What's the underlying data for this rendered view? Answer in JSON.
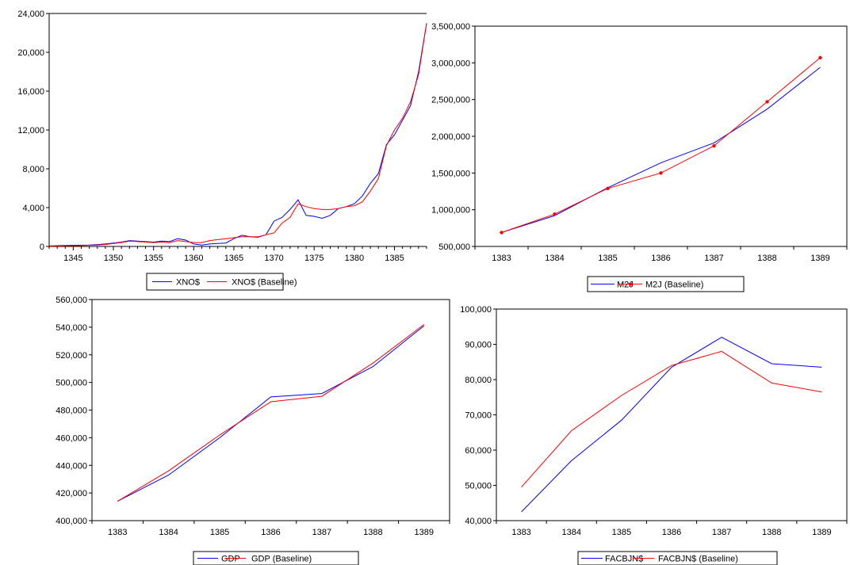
{
  "colors": {
    "actual": "#0000ff",
    "baseline": "#ff0000"
  },
  "charts": [
    {
      "type": "line",
      "x_ticks": [
        "1345",
        "1350",
        "1355",
        "1360",
        "1365",
        "1370",
        "1375",
        "1380",
        "1385"
      ],
      "y_ticks": [
        "0",
        "4,000",
        "8,000",
        "12,000",
        "16,000",
        "20,000",
        "24,000"
      ],
      "ylim": [
        0,
        24000
      ],
      "legend": [
        "XNO$",
        "XNO$ (Baseline)"
      ]
    },
    {
      "type": "line",
      "x_ticks": [
        "1383",
        "1384",
        "1385",
        "1386",
        "1387",
        "1388",
        "1389"
      ],
      "y_ticks": [
        "500,000",
        "1,000,000",
        "1,500,000",
        "2,000,000",
        "2,500,000",
        "3,000,000",
        "3,500,000"
      ],
      "ylim": [
        500000,
        3500000
      ],
      "legend": [
        "M2J",
        "M2J (Baseline)"
      ]
    },
    {
      "type": "line",
      "x_ticks": [
        "1383",
        "1384",
        "1385",
        "1386",
        "1387",
        "1388",
        "1389"
      ],
      "y_ticks": [
        "400,000",
        "420,000",
        "440,000",
        "460,000",
        "480,000",
        "500,000",
        "520,000",
        "540,000",
        "560,000"
      ],
      "ylim": [
        400000,
        560000
      ],
      "legend": [
        "GDP",
        "GDP (Baseline)"
      ]
    },
    {
      "type": "line",
      "x_ticks": [
        "1383",
        "1384",
        "1385",
        "1386",
        "1387",
        "1388",
        "1389"
      ],
      "y_ticks": [
        "40,000",
        "50,000",
        "60,000",
        "70,000",
        "80,000",
        "90,000",
        "100,000"
      ],
      "ylim": [
        40000,
        100000
      ],
      "legend": [
        "FACBJN$",
        "FACBJN$ (Baseline)"
      ]
    }
  ],
  "chart_data": [
    {
      "type": "line",
      "x": [
        1342,
        1343,
        1344,
        1345,
        1346,
        1347,
        1348,
        1349,
        1350,
        1351,
        1352,
        1353,
        1354,
        1355,
        1356,
        1357,
        1358,
        1359,
        1360,
        1361,
        1362,
        1363,
        1364,
        1365,
        1366,
        1367,
        1368,
        1369,
        1370,
        1371,
        1372,
        1373,
        1374,
        1375,
        1376,
        1377,
        1378,
        1379,
        1380,
        1381,
        1382,
        1383,
        1384,
        1385,
        1386,
        1387,
        1388,
        1389
      ],
      "ylim": [
        0,
        24000
      ],
      "series": [
        {
          "name": "XNO$",
          "values": [
            50,
            80,
            100,
            120,
            130,
            150,
            200,
            250,
            350,
            450,
            600,
            550,
            500,
            450,
            550,
            500,
            800,
            650,
            250,
            150,
            250,
            300,
            350,
            800,
            1150,
            1000,
            950,
            1200,
            2600,
            3000,
            3800,
            4800,
            3200,
            3100,
            2900,
            3200,
            3900,
            4100,
            4400,
            5200,
            6500,
            7500,
            10500,
            11500,
            13000,
            14500,
            18000,
            23000
          ]
        },
        {
          "name": "XNO$ (Baseline)",
          "values": [
            30,
            50,
            60,
            70,
            90,
            120,
            150,
            200,
            300,
            400,
            550,
            500,
            450,
            400,
            450,
            400,
            600,
            500,
            400,
            400,
            600,
            700,
            800,
            900,
            1000,
            1000,
            1000,
            1200,
            1400,
            2400,
            3000,
            4400,
            4100,
            3900,
            3800,
            3800,
            3900,
            4100,
            4200,
            4600,
            5700,
            7000,
            10400,
            12000,
            13200,
            14900,
            17700,
            23000
          ]
        }
      ]
    },
    {
      "type": "line",
      "categories": [
        "1383",
        "1384",
        "1385",
        "1386",
        "1387",
        "1388",
        "1389"
      ],
      "ylim": [
        500000,
        3500000
      ],
      "series": [
        {
          "name": "M2J",
          "values": [
            690000,
            920000,
            1300000,
            1640000,
            1910000,
            2370000,
            2940000
          ]
        },
        {
          "name": "M2J (Baseline)",
          "values": [
            690000,
            940000,
            1290000,
            1500000,
            1870000,
            2470000,
            3070000
          ]
        }
      ]
    },
    {
      "type": "line",
      "categories": [
        "1383",
        "1384",
        "1385",
        "1386",
        "1387",
        "1388",
        "1389"
      ],
      "ylim": [
        400000,
        560000
      ],
      "series": [
        {
          "name": "GDP",
          "values": [
            414000,
            433000,
            460000,
            489500,
            492000,
            511500,
            541000
          ]
        },
        {
          "name": "GDP (Baseline)",
          "values": [
            414000,
            436000,
            462000,
            486000,
            490000,
            514000,
            542000
          ]
        }
      ]
    },
    {
      "type": "line",
      "categories": [
        "1383",
        "1384",
        "1385",
        "1386",
        "1387",
        "1388",
        "1389"
      ],
      "ylim": [
        40000,
        100000
      ],
      "series": [
        {
          "name": "FACBJN$",
          "values": [
            42500,
            57000,
            68500,
            83500,
            92000,
            84500,
            83500
          ]
        },
        {
          "name": "FACBJN$ (Baseline)",
          "values": [
            49500,
            65500,
            75500,
            84000,
            88000,
            79000,
            76500
          ]
        }
      ]
    }
  ]
}
